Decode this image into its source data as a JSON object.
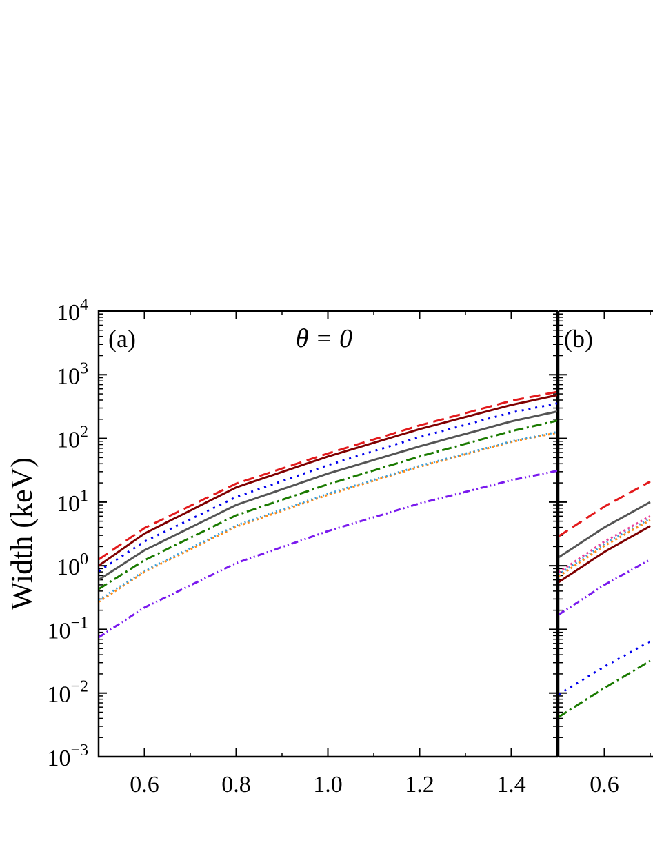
{
  "chart_data": [
    {
      "type": "line",
      "panel_label": "(a)",
      "title": "θ = 0",
      "ylabel": "Width (keV)",
      "xlabel": "",
      "yscale": "log",
      "ylim": [
        0.001,
        10000
      ],
      "xlim": [
        0.5,
        1.5
      ],
      "xticks": [
        0.6,
        0.8,
        1.0,
        1.2,
        1.4
      ],
      "xtick_labels": [
        "0.6",
        "0.8",
        "1.0",
        "1.2",
        "1.4"
      ],
      "yticks": [
        0.001,
        0.01,
        0.1,
        1,
        10,
        100,
        1000,
        10000
      ],
      "ytick_labels": [
        {
          "base": "10",
          "exp": "−3"
        },
        {
          "base": "10",
          "exp": "−2"
        },
        {
          "base": "10",
          "exp": "−1"
        },
        {
          "base": "10",
          "exp": "0"
        },
        {
          "base": "10",
          "exp": "1"
        },
        {
          "base": "10",
          "exp": "2"
        },
        {
          "base": "10",
          "exp": "3"
        },
        {
          "base": "10",
          "exp": "4"
        }
      ],
      "series": [
        {
          "color": "#e31a1c",
          "dash": "16 8",
          "x": [
            0.5,
            0.6,
            0.8,
            1.0,
            1.2,
            1.4,
            1.5
          ],
          "y": [
            1.25,
            3.9,
            19.5,
            58,
            160,
            390,
            540
          ]
        },
        {
          "color": "#7f0000",
          "dash": "",
          "x": [
            0.5,
            0.6,
            0.8,
            1.0,
            1.2,
            1.4,
            1.5
          ],
          "y": [
            1.0,
            3.2,
            17,
            52,
            140,
            335,
            480
          ]
        },
        {
          "color": "#0000ee",
          "dash": "3 7",
          "x": [
            0.5,
            0.6,
            0.8,
            1.0,
            1.2,
            1.4,
            1.5
          ],
          "y": [
            0.82,
            2.4,
            12,
            38,
            105,
            255,
            355
          ]
        },
        {
          "color": "#555555",
          "dash": "",
          "x": [
            0.5,
            0.6,
            0.8,
            1.0,
            1.2,
            1.4,
            1.5
          ],
          "y": [
            0.6,
            1.75,
            9,
            28,
            75,
            185,
            265
          ]
        },
        {
          "color": "#1a7a00",
          "dash": "14 5 3 5",
          "x": [
            0.5,
            0.6,
            0.8,
            1.0,
            1.2,
            1.4,
            1.5
          ],
          "y": [
            0.43,
            1.22,
            6.2,
            19,
            52,
            130,
            190
          ]
        },
        {
          "color": "#ff8c1a",
          "dash": "3 4",
          "x": [
            0.5,
            0.6,
            0.8,
            1.0,
            1.2,
            1.4,
            1.5
          ],
          "y": [
            0.27,
            0.8,
            4.1,
            13,
            36,
            88,
            123
          ]
        },
        {
          "color": "#3aa0dd",
          "dash": "2 4",
          "x": [
            0.5,
            0.6,
            0.8,
            1.0,
            1.2,
            1.4,
            1.5
          ],
          "y": [
            0.29,
            0.83,
            4.3,
            13.5,
            37,
            90,
            126
          ]
        },
        {
          "color": "#7a1aee",
          "dash": "10 4 2 4 2 4",
          "x": [
            0.5,
            0.6,
            0.8,
            1.0,
            1.2,
            1.4,
            1.5
          ],
          "y": [
            0.075,
            0.22,
            1.1,
            3.5,
            9.5,
            22,
            31
          ]
        }
      ]
    },
    {
      "type": "line",
      "panel_label": "(b)",
      "title": "",
      "ylabel": "",
      "xlabel": "",
      "yscale": "log",
      "ylim": [
        0.001,
        10000
      ],
      "xlim": [
        0.5,
        1.5
      ],
      "xticks": [
        0.6,
        0.8,
        1.0
      ],
      "xtick_labels": [
        "0.6",
        "",
        ""
      ],
      "series": [
        {
          "color": "#e31a1c",
          "dash": "16 8",
          "x": [
            0.5,
            0.6,
            0.7
          ],
          "y": [
            2.9,
            8.5,
            21
          ]
        },
        {
          "color": "#555555",
          "dash": "",
          "x": [
            0.5,
            0.6,
            0.7
          ],
          "y": [
            1.35,
            4.0,
            10
          ]
        },
        {
          "color": "#e8409a",
          "dash": "3 4",
          "x": [
            0.5,
            0.6,
            0.7
          ],
          "y": [
            0.78,
            2.4,
            6.0
          ]
        },
        {
          "color": "#3aa0dd",
          "dash": "2 4",
          "x": [
            0.5,
            0.6,
            0.7
          ],
          "y": [
            0.72,
            2.2,
            5.5
          ]
        },
        {
          "color": "#ff8c1a",
          "dash": "3 4",
          "x": [
            0.5,
            0.6,
            0.7
          ],
          "y": [
            0.68,
            2.05,
            5.2
          ]
        },
        {
          "color": "#7f0000",
          "dash": "",
          "x": [
            0.5,
            0.6,
            0.7
          ],
          "y": [
            0.55,
            1.65,
            4.2
          ]
        },
        {
          "color": "#7a1aee",
          "dash": "10 4 2 4 2 4",
          "x": [
            0.5,
            0.6,
            0.7
          ],
          "y": [
            0.17,
            0.5,
            1.25
          ]
        },
        {
          "color": "#0000ee",
          "dash": "3 7",
          "x": [
            0.5,
            0.6,
            0.7
          ],
          "y": [
            0.0095,
            0.026,
            0.065
          ]
        },
        {
          "color": "#1a7a00",
          "dash": "14 5 3 5",
          "x": [
            0.5,
            0.6,
            0.7
          ],
          "y": [
            0.0042,
            0.012,
            0.032
          ]
        }
      ]
    }
  ]
}
